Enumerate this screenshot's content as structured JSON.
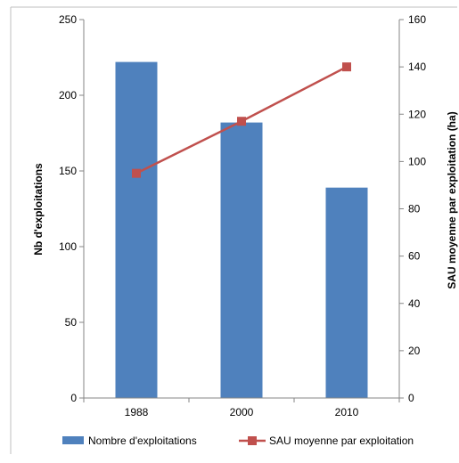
{
  "chart_data": {
    "type": "bar",
    "categories": [
      "1988",
      "2000",
      "2010"
    ],
    "series": [
      {
        "name": "Nombre d'exploitations",
        "type": "bar",
        "axis": "left",
        "values": [
          222,
          182,
          139
        ],
        "color": "#4f81bd"
      },
      {
        "name": "SAU moyenne par exploitation",
        "type": "line",
        "axis": "right",
        "values": [
          95,
          117,
          140
        ],
        "color": "#c0504d"
      }
    ],
    "y_left": {
      "label": "Nb d'exploitations",
      "ylim": [
        0,
        250
      ],
      "ticks": [
        0,
        50,
        100,
        150,
        200,
        250
      ]
    },
    "y_right": {
      "label": "SAU moyenne par exploitation (ha)",
      "ylim": [
        0,
        160
      ],
      "ticks": [
        0,
        20,
        40,
        60,
        80,
        100,
        120,
        140,
        160
      ]
    },
    "xlabel": "",
    "title": "",
    "grid": false,
    "legend_position": "bottom"
  }
}
